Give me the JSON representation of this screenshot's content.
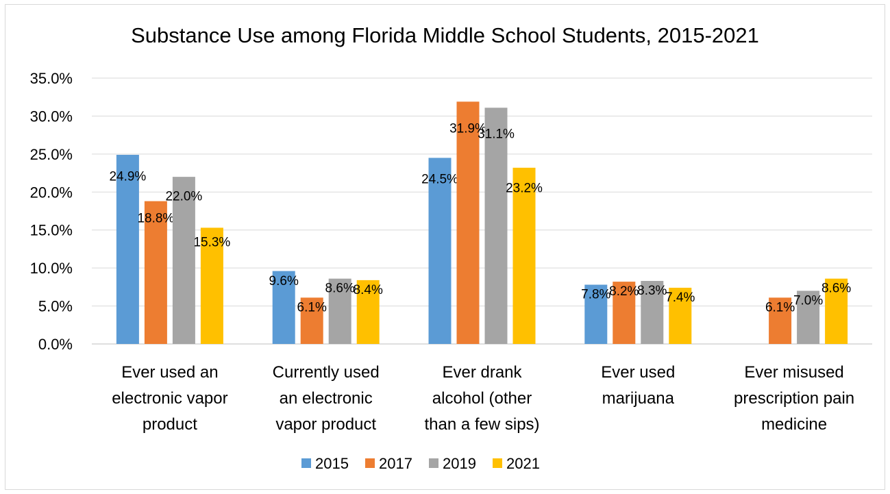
{
  "chart_data": {
    "type": "bar",
    "title": "Substance Use among Florida Middle School Students, 2015-2021",
    "categories": [
      [
        "Ever used an",
        "electronic vapor",
        "product"
      ],
      [
        "Currently used",
        "an electronic",
        "vapor product"
      ],
      [
        "Ever drank",
        "alcohol (other",
        "than a few sips)"
      ],
      [
        "Ever used",
        "marijuana"
      ],
      [
        "Ever misused",
        "prescription pain",
        "medicine"
      ]
    ],
    "series": [
      {
        "name": "2015",
        "color": "#5b9bd5",
        "values": [
          24.9,
          9.6,
          24.5,
          7.8,
          null
        ],
        "labels": [
          "24.9%",
          "9.6%",
          "24.5%",
          "7.8%",
          null
        ]
      },
      {
        "name": "2017",
        "color": "#ed7d31",
        "values": [
          18.8,
          6.1,
          31.9,
          8.2,
          6.1
        ],
        "labels": [
          "18.8%",
          "6.1%",
          "31.9%",
          "8.2%",
          "6.1%"
        ]
      },
      {
        "name": "2019",
        "color": "#a5a5a5",
        "values": [
          22.0,
          8.6,
          31.1,
          8.3,
          7.0
        ],
        "labels": [
          "22.0%",
          "8.6%",
          "31.1%",
          "8.3%",
          "7.0%"
        ]
      },
      {
        "name": "2021",
        "color": "#ffc000",
        "values": [
          15.3,
          8.4,
          23.2,
          7.4,
          8.6
        ],
        "labels": [
          "15.3%",
          "8.4%",
          "23.2%",
          "7.4%",
          "8.6%"
        ]
      }
    ],
    "y_ticks": [
      "0.0%",
      "5.0%",
      "10.0%",
      "15.0%",
      "20.0%",
      "25.0%",
      "30.0%",
      "35.0%"
    ],
    "ylim": [
      0,
      35
    ],
    "grid": true,
    "legend_position": "bottom"
  }
}
